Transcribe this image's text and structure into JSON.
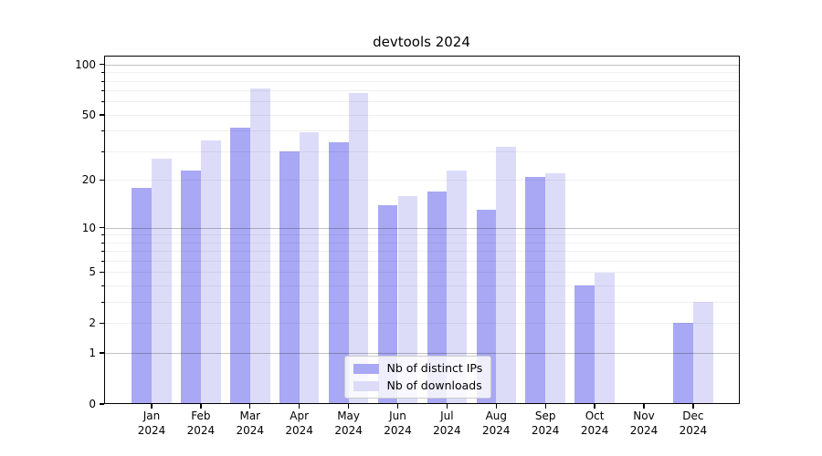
{
  "chart_data": {
    "type": "bar",
    "title": "devtools 2024",
    "categories": [
      "Jan 2024",
      "Feb 2024",
      "Mar 2024",
      "Apr 2024",
      "May 2024",
      "Jun 2024",
      "Jul 2024",
      "Aug 2024",
      "Sep 2024",
      "Oct 2024",
      "Nov 2024",
      "Dec 2024"
    ],
    "series": [
      {
        "name": "Nb of distinct IPs",
        "color": "#a8a8f4",
        "values": [
          18,
          23,
          42,
          30,
          34,
          14,
          17,
          13,
          21,
          4,
          0,
          2
        ]
      },
      {
        "name": "Nb of downloads",
        "color": "#dcdcf9",
        "values": [
          27,
          35,
          72,
          39,
          68,
          16,
          23,
          32,
          22,
          5,
          0,
          3
        ]
      }
    ],
    "xlabel": "",
    "ylabel": "",
    "yscale": "log1p (position proportional to log10(value+1))",
    "yticks": [
      0,
      1,
      2,
      5,
      10,
      20,
      50,
      100
    ],
    "ylim": [
      0,
      113
    ],
    "grid": {
      "on": true,
      "major_lines_at": [
        1,
        10,
        100
      ],
      "minor_lines_at": [
        2,
        3,
        4,
        5,
        6,
        7,
        8,
        9,
        20,
        30,
        40,
        50,
        60,
        70,
        80,
        90
      ]
    },
    "legend_position": "lower center"
  },
  "colors": {
    "bar_distinct_ips": "#a8a8f4",
    "bar_downloads": "#dcdcf9",
    "axis": "#000000",
    "grid_major": "#c2c2c2",
    "grid_minor": "#efefef",
    "legend_border": "#cccccc"
  }
}
